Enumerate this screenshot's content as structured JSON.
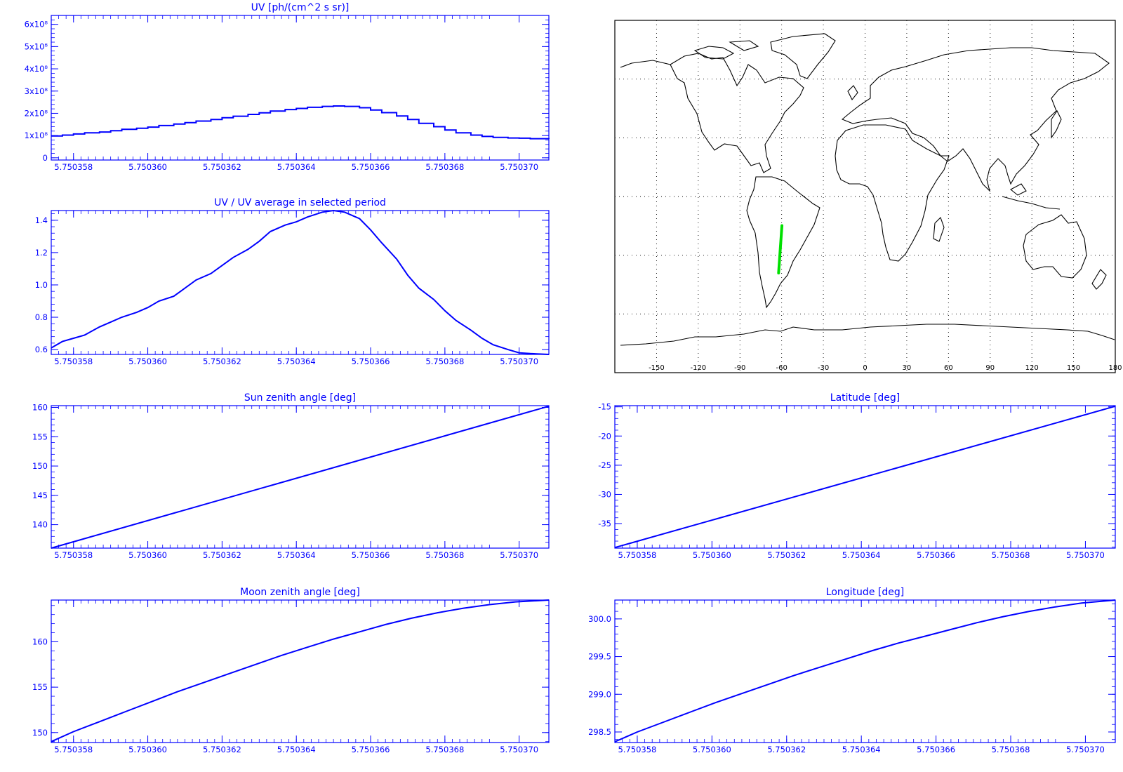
{
  "x_tick_labels": [
    "5.750358",
    "5.750360",
    "5.750362",
    "5.750364",
    "5.750366",
    "5.750368",
    "5.750370"
  ],
  "x_range": [
    5.7503574,
    5.7503708
  ],
  "colors": {
    "axis": "#0000ff",
    "line": "#0000ff",
    "track": "#00e000",
    "map": "#000000"
  },
  "chart_data": [
    {
      "id": "uv",
      "type": "line",
      "step": true,
      "title": "UV [ph/(cm^2 s sr)]",
      "y_ticks": [
        {
          "v": 0,
          "label": "0"
        },
        {
          "v": 100000000.0,
          "label": "1x10⁸"
        },
        {
          "v": 200000000.0,
          "label": "2x10⁸"
        },
        {
          "v": 300000000.0,
          "label": "3x10⁸"
        },
        {
          "v": 400000000.0,
          "label": "4x10⁸"
        },
        {
          "v": 500000000.0,
          "label": "5x10⁸"
        },
        {
          "v": 600000000.0,
          "label": "6x10⁸"
        }
      ],
      "ylim": [
        -10000000.0,
        640000000.0
      ],
      "x": [
        5.7503574,
        5.7503577,
        5.750358,
        5.7503583,
        5.7503587,
        5.750359,
        5.7503593,
        5.7503597,
        5.75036,
        5.7503603,
        5.7503607,
        5.750361,
        5.7503613,
        5.7503617,
        5.750362,
        5.7503623,
        5.7503627,
        5.750363,
        5.7503633,
        5.7503637,
        5.750364,
        5.7503643,
        5.7503647,
        5.750365,
        5.7503653,
        5.7503657,
        5.750366,
        5.7503663,
        5.7503667,
        5.750367,
        5.7503673,
        5.7503677,
        5.750368,
        5.7503683,
        5.7503687,
        5.750369,
        5.7503693,
        5.7503697,
        5.75037,
        5.7503703,
        5.7503708
      ],
      "y": [
        98000000.0,
        102000000.0,
        107000000.0,
        112000000.0,
        116000000.0,
        122000000.0,
        128000000.0,
        133000000.0,
        138000000.0,
        145000000.0,
        152000000.0,
        158000000.0,
        165000000.0,
        172000000.0,
        180000000.0,
        187000000.0,
        195000000.0,
        202000000.0,
        210000000.0,
        217000000.0,
        222000000.0,
        227000000.0,
        231000000.0,
        233000000.0,
        231000000.0,
        225000000.0,
        215000000.0,
        203000000.0,
        188000000.0,
        172000000.0,
        155000000.0,
        140000000.0,
        125000000.0,
        112000000.0,
        102000000.0,
        96000000.0,
        92000000.0,
        89000000.0,
        88000000.0,
        86000000.0,
        85000000.0
      ]
    },
    {
      "id": "uvratio",
      "type": "line",
      "title": "UV / UV average in selected period",
      "y_ticks": [
        {
          "v": 0.6,
          "label": "0.6"
        },
        {
          "v": 0.8,
          "label": "0.8"
        },
        {
          "v": 1.0,
          "label": "1.0"
        },
        {
          "v": 1.2,
          "label": "1.2"
        },
        {
          "v": 1.4,
          "label": "1.4"
        }
      ],
      "ylim": [
        0.57,
        1.46
      ],
      "x": [
        5.7503574,
        5.7503577,
        5.750358,
        5.7503583,
        5.7503587,
        5.750359,
        5.7503593,
        5.7503597,
        5.75036,
        5.7503603,
        5.7503607,
        5.750361,
        5.7503613,
        5.7503617,
        5.750362,
        5.7503623,
        5.7503627,
        5.750363,
        5.7503633,
        5.7503637,
        5.750364,
        5.7503643,
        5.7503647,
        5.750365,
        5.7503653,
        5.7503657,
        5.750366,
        5.7503663,
        5.7503667,
        5.750367,
        5.7503673,
        5.7503677,
        5.750368,
        5.7503683,
        5.7503687,
        5.750369,
        5.7503693,
        5.7503697,
        5.75037,
        5.7503703,
        5.7503708
      ],
      "y": [
        0.61,
        0.65,
        0.67,
        0.69,
        0.74,
        0.77,
        0.8,
        0.83,
        0.86,
        0.9,
        0.93,
        0.98,
        1.03,
        1.07,
        1.12,
        1.17,
        1.22,
        1.27,
        1.33,
        1.37,
        1.39,
        1.42,
        1.45,
        1.46,
        1.45,
        1.41,
        1.34,
        1.26,
        1.16,
        1.06,
        0.98,
        0.91,
        0.84,
        0.78,
        0.72,
        0.67,
        0.63,
        0.6,
        0.58,
        0.575,
        0.57
      ]
    },
    {
      "id": "sza",
      "type": "line",
      "title": "Sun zenith angle [deg]",
      "y_ticks": [
        {
          "v": 140,
          "label": "140"
        },
        {
          "v": 145,
          "label": "145"
        },
        {
          "v": 150,
          "label": "150"
        },
        {
          "v": 155,
          "label": "155"
        },
        {
          "v": 160,
          "label": "160"
        }
      ],
      "ylim": [
        136.0,
        160.3
      ],
      "x": [
        5.7503574,
        5.7503708
      ],
      "y": [
        136.0,
        160.2
      ]
    },
    {
      "id": "lat",
      "type": "line",
      "title": "Latitude [deg]",
      "y_ticks": [
        {
          "v": -35,
          "label": "-35"
        },
        {
          "v": -30,
          "label": "-30"
        },
        {
          "v": -25,
          "label": "-25"
        },
        {
          "v": -20,
          "label": "-20"
        },
        {
          "v": -15,
          "label": "-15"
        }
      ],
      "ylim": [
        -39.2,
        -14.8
      ],
      "x": [
        5.7503574,
        5.7503708
      ],
      "y": [
        -39.1,
        -14.9
      ]
    },
    {
      "id": "mza",
      "type": "line",
      "title": "Moon zenith angle [deg]",
      "y_ticks": [
        {
          "v": 150,
          "label": "150"
        },
        {
          "v": 155,
          "label": "155"
        },
        {
          "v": 160,
          "label": "160"
        }
      ],
      "ylim": [
        148.9,
        164.6
      ],
      "x": [
        5.7503574,
        5.750358,
        5.7503587,
        5.7503594,
        5.7503601,
        5.7503608,
        5.7503615,
        5.7503622,
        5.7503629,
        5.7503636,
        5.7503643,
        5.750365,
        5.7503657,
        5.7503664,
        5.7503671,
        5.7503678,
        5.7503685,
        5.7503692,
        5.7503699,
        5.7503708
      ],
      "y": [
        149.0,
        150.1,
        151.2,
        152.3,
        153.4,
        154.5,
        155.5,
        156.5,
        157.5,
        158.5,
        159.4,
        160.3,
        161.1,
        161.9,
        162.6,
        163.2,
        163.7,
        164.1,
        164.4,
        164.6
      ]
    },
    {
      "id": "lon",
      "type": "line",
      "title": "Longitude [deg]",
      "y_ticks": [
        {
          "v": 298.5,
          "label": "298.5"
        },
        {
          "v": 299.0,
          "label": "299.0"
        },
        {
          "v": 299.5,
          "label": "299.5"
        },
        {
          "v": 300.0,
          "label": "300.0"
        }
      ],
      "ylim": [
        298.36,
        300.25
      ],
      "x": [
        5.7503574,
        5.750358,
        5.7503587,
        5.7503594,
        5.7503601,
        5.7503608,
        5.7503615,
        5.7503622,
        5.7503629,
        5.7503636,
        5.7503643,
        5.750365,
        5.7503657,
        5.7503664,
        5.7503671,
        5.7503678,
        5.7503685,
        5.7503692,
        5.7503699,
        5.7503708
      ],
      "y": [
        298.37,
        298.5,
        298.63,
        298.76,
        298.89,
        299.01,
        299.13,
        299.25,
        299.36,
        299.47,
        299.58,
        299.68,
        299.77,
        299.86,
        299.95,
        300.03,
        300.1,
        300.16,
        300.21,
        300.25
      ]
    }
  ],
  "map": {
    "x_tick_labels": [
      "-150",
      "-120",
      "-90",
      "-60",
      "-30",
      "0",
      "30",
      "60",
      "90",
      "120",
      "150",
      "180"
    ],
    "lon_ticks": [
      -150,
      -120,
      -90,
      -60,
      -30,
      0,
      30,
      60,
      90,
      120,
      150,
      180
    ],
    "lat_grid": [
      60,
      30,
      0,
      -30,
      -60
    ],
    "track": {
      "lon": [
        -59.8,
        -62.2
      ],
      "lat": [
        -14.9,
        -39.1
      ]
    }
  }
}
